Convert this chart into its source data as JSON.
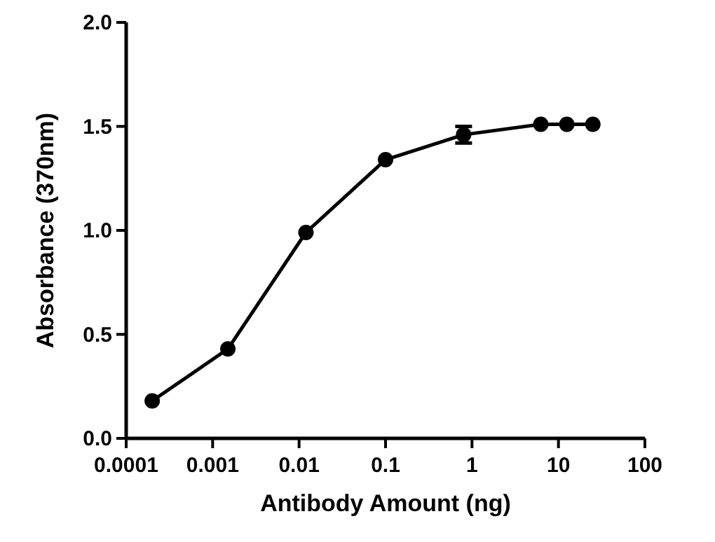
{
  "chart_data": {
    "type": "line",
    "xlabel": "Antibody Amount (ng)",
    "ylabel": "Absorbance (370nm)",
    "log": "x",
    "x": [
      0.0002,
      0.0015,
      0.012,
      0.1,
      0.8,
      6.25,
      12.5,
      25
    ],
    "series": [
      {
        "color": "#000000",
        "values": [
          0.18,
          0.43,
          0.99,
          1.34,
          1.46,
          1.51,
          1.51,
          1.51
        ],
        "errors": [
          null,
          null,
          null,
          null,
          0.04,
          null,
          null,
          null
        ]
      }
    ],
    "xlim": [
      0.0001,
      100
    ],
    "xticks": [
      0.0001,
      0.001,
      0.01,
      0.1,
      1,
      10,
      100
    ],
    "ylim": [
      0,
      2
    ],
    "yticks": [
      {
        "value": 0,
        "label": "0.0"
      },
      0.5,
      {
        "value": 1,
        "label": "1.0"
      },
      1.5,
      {
        "value": 2,
        "label": "2.0"
      }
    ],
    "marker": "circle",
    "line_style": "solid",
    "grid": false
  }
}
